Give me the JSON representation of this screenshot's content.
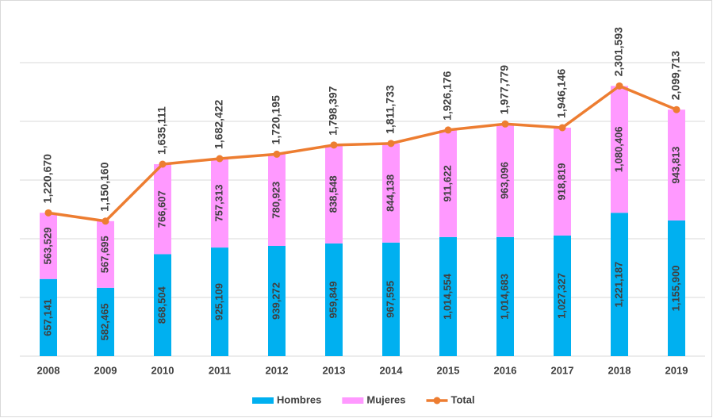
{
  "chart_data": {
    "type": "stacked-bar-line",
    "categories": [
      "2008",
      "2009",
      "2010",
      "2011",
      "2012",
      "2013",
      "2014",
      "2015",
      "2016",
      "2017",
      "2018",
      "2019"
    ],
    "series": [
      {
        "name": "Hombres",
        "color": "#00b0f0",
        "kind": "bar",
        "values": [
          657141,
          582465,
          868504,
          925109,
          939272,
          959849,
          967595,
          1014554,
          1014683,
          1027327,
          1221187,
          1155900
        ],
        "value_labels": [
          "657,141",
          "582,465",
          "868,504",
          "925,109",
          "939,272",
          "959,849",
          "967,595",
          "1,014,554",
          "1,014,683",
          "1,027,327",
          "1,221,187",
          "1,155,900"
        ]
      },
      {
        "name": "Mujeres",
        "color": "#ff99ff",
        "kind": "bar",
        "values": [
          563529,
          567695,
          766607,
          757313,
          780923,
          838548,
          844138,
          911622,
          963096,
          918819,
          1080406,
          943813
        ],
        "value_labels": [
          "563,529",
          "567,695",
          "766,607",
          "757,313",
          "780,923",
          "838,548",
          "844,138",
          "911,622",
          "963,096",
          "918,819",
          "1,080,406",
          "943,813"
        ]
      },
      {
        "name": "Total",
        "color": "#ed7d31",
        "kind": "line",
        "values": [
          1220670,
          1150160,
          1635111,
          1682422,
          1720195,
          1798397,
          1811733,
          1926176,
          1977779,
          1946146,
          2301593,
          2099713
        ],
        "value_labels": [
          "1,220,670",
          "1,150,160",
          "1,635,111",
          "1,682,422",
          "1,720,195",
          "1,798,397",
          "1,811,733",
          "1,926,176",
          "1,977,779",
          "1,946,146",
          "2,301,593",
          "2,099,713"
        ]
      }
    ],
    "ylim": [
      0,
      2500000
    ],
    "yticks": [
      0,
      500000,
      1000000,
      1500000,
      2000000,
      2500000
    ],
    "grid": true,
    "legend": "bottom"
  }
}
